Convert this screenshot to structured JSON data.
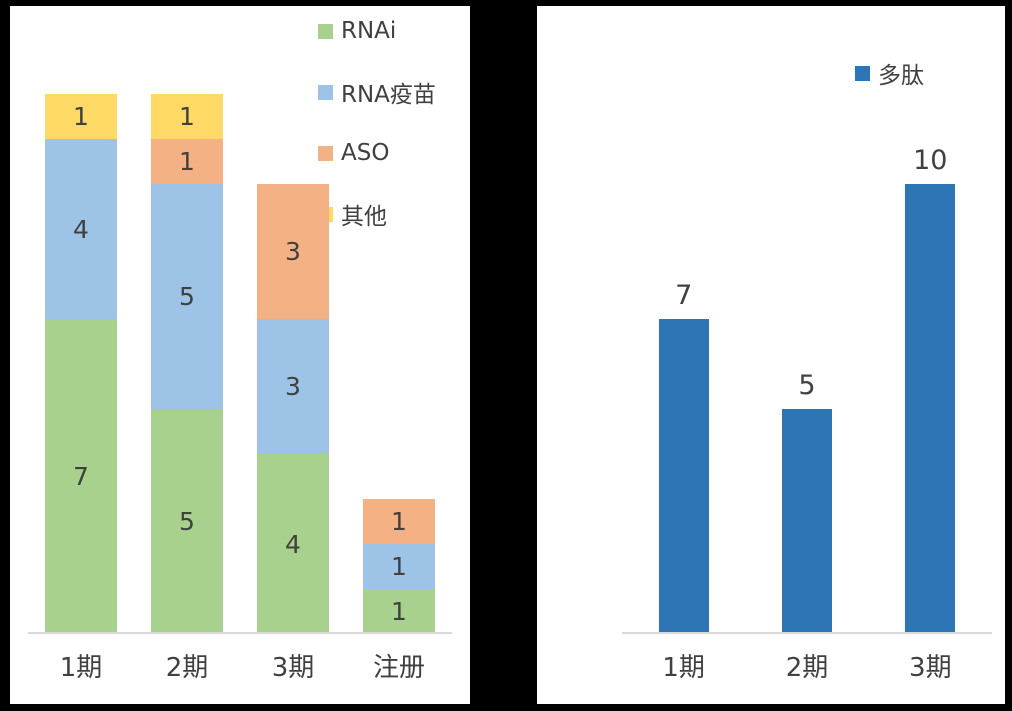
{
  "colors": {
    "background": "#000000",
    "panel": "#FFFFFF",
    "axis_line": "#D9D9D9",
    "text": "#404040"
  },
  "chart_data": [
    {
      "type": "stacked-bar",
      "title": "",
      "categories": [
        "1期",
        "2期",
        "3期",
        "注册"
      ],
      "series": [
        {
          "name": "RNAi",
          "color": "#A9D18E",
          "values": [
            7,
            5,
            4,
            1
          ]
        },
        {
          "name": "RNA疫苗",
          "color": "#9DC3E6",
          "values": [
            4,
            5,
            3,
            1
          ]
        },
        {
          "name": "ASO",
          "color": "#F4B183",
          "values": [
            0,
            1,
            3,
            1
          ]
        },
        {
          "name": "其他",
          "color": "#FFD966",
          "values": [
            1,
            1,
            0,
            0
          ]
        }
      ],
      "totals": [
        12,
        12,
        10,
        3
      ],
      "data_labels": "inside-segment",
      "legend_position": "top-right",
      "grid": false,
      "ylim": [
        0,
        12
      ]
    },
    {
      "type": "bar",
      "title": "",
      "categories": [
        "1期",
        "2期",
        "3期"
      ],
      "series": [
        {
          "name": "多肽",
          "color": "#2E75B6",
          "values": [
            7,
            5,
            10
          ]
        }
      ],
      "data_labels": "above-bar",
      "legend_position": "top-right",
      "grid": false,
      "ylim": [
        0,
        12
      ]
    }
  ]
}
